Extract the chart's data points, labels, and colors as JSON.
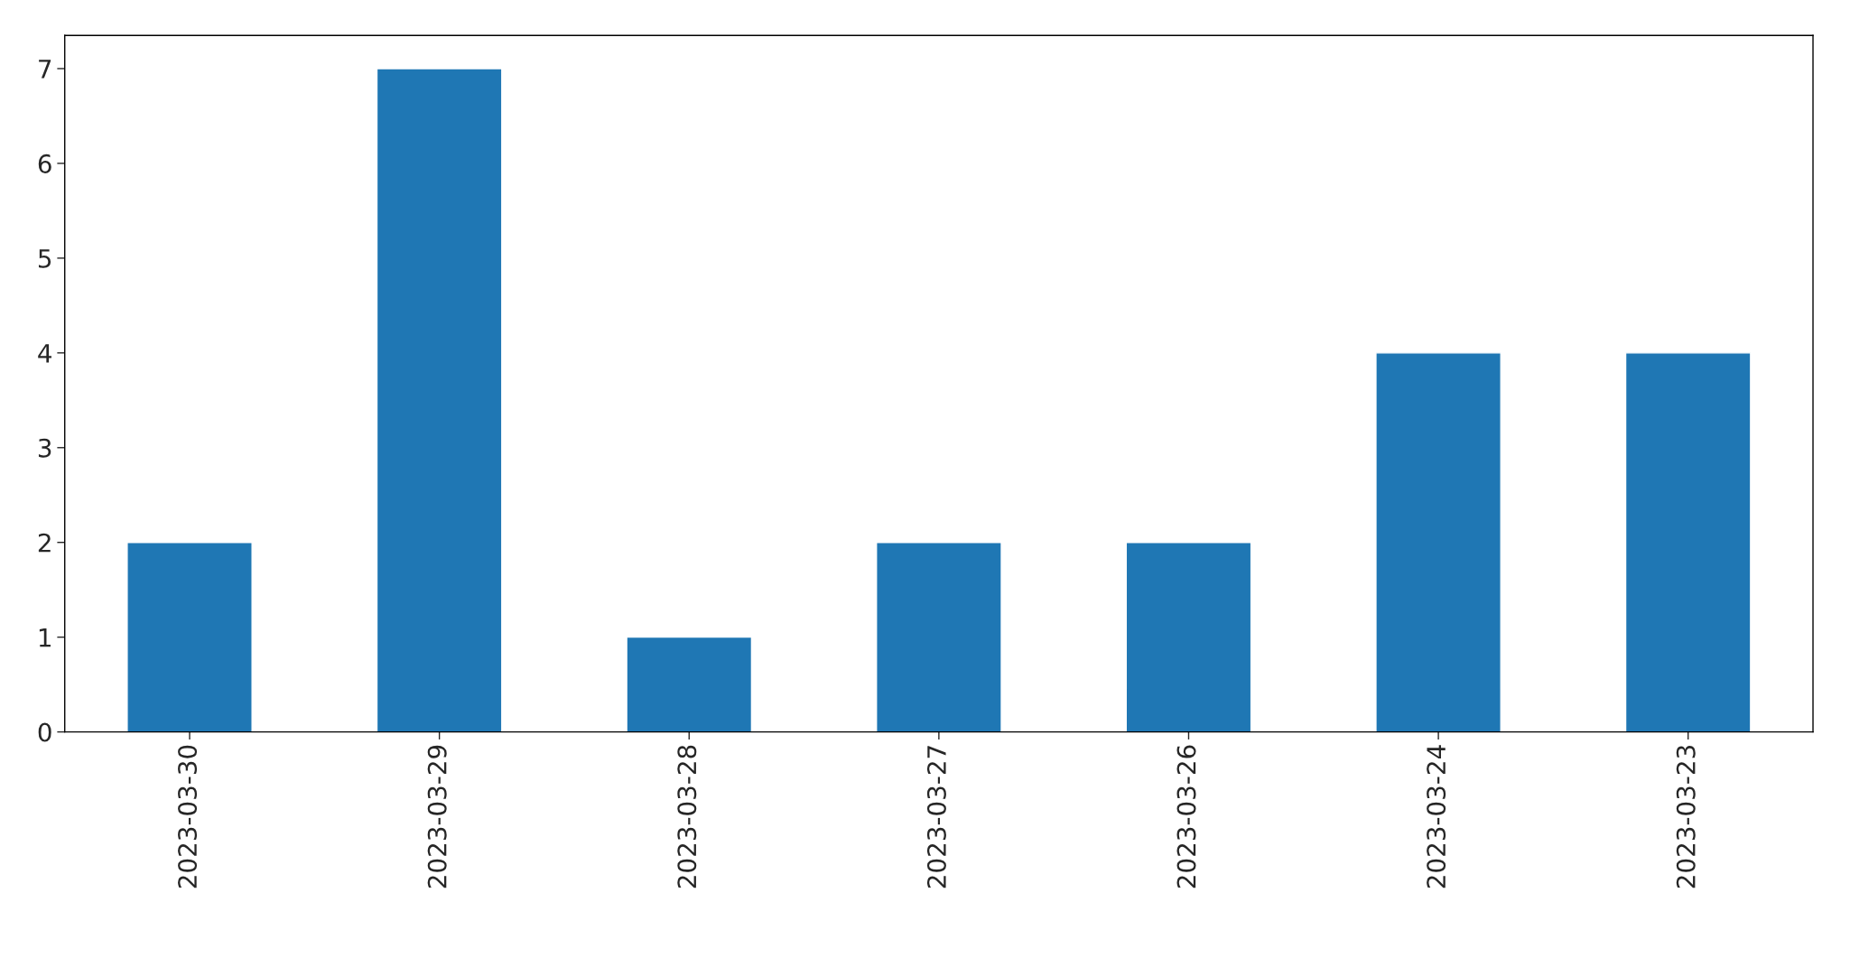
{
  "chart_data": {
    "type": "bar",
    "categories": [
      "2023-03-30",
      "2023-03-29",
      "2023-03-28",
      "2023-03-27",
      "2023-03-26",
      "2023-03-24",
      "2023-03-23"
    ],
    "values": [
      2,
      7,
      1,
      2,
      2,
      4,
      4
    ],
    "color": "#1f77b4",
    "ylim": [
      0,
      7.35
    ],
    "yticks": [
      0,
      1,
      2,
      3,
      4,
      5,
      6,
      7
    ],
    "grid": false,
    "legend": false
  }
}
